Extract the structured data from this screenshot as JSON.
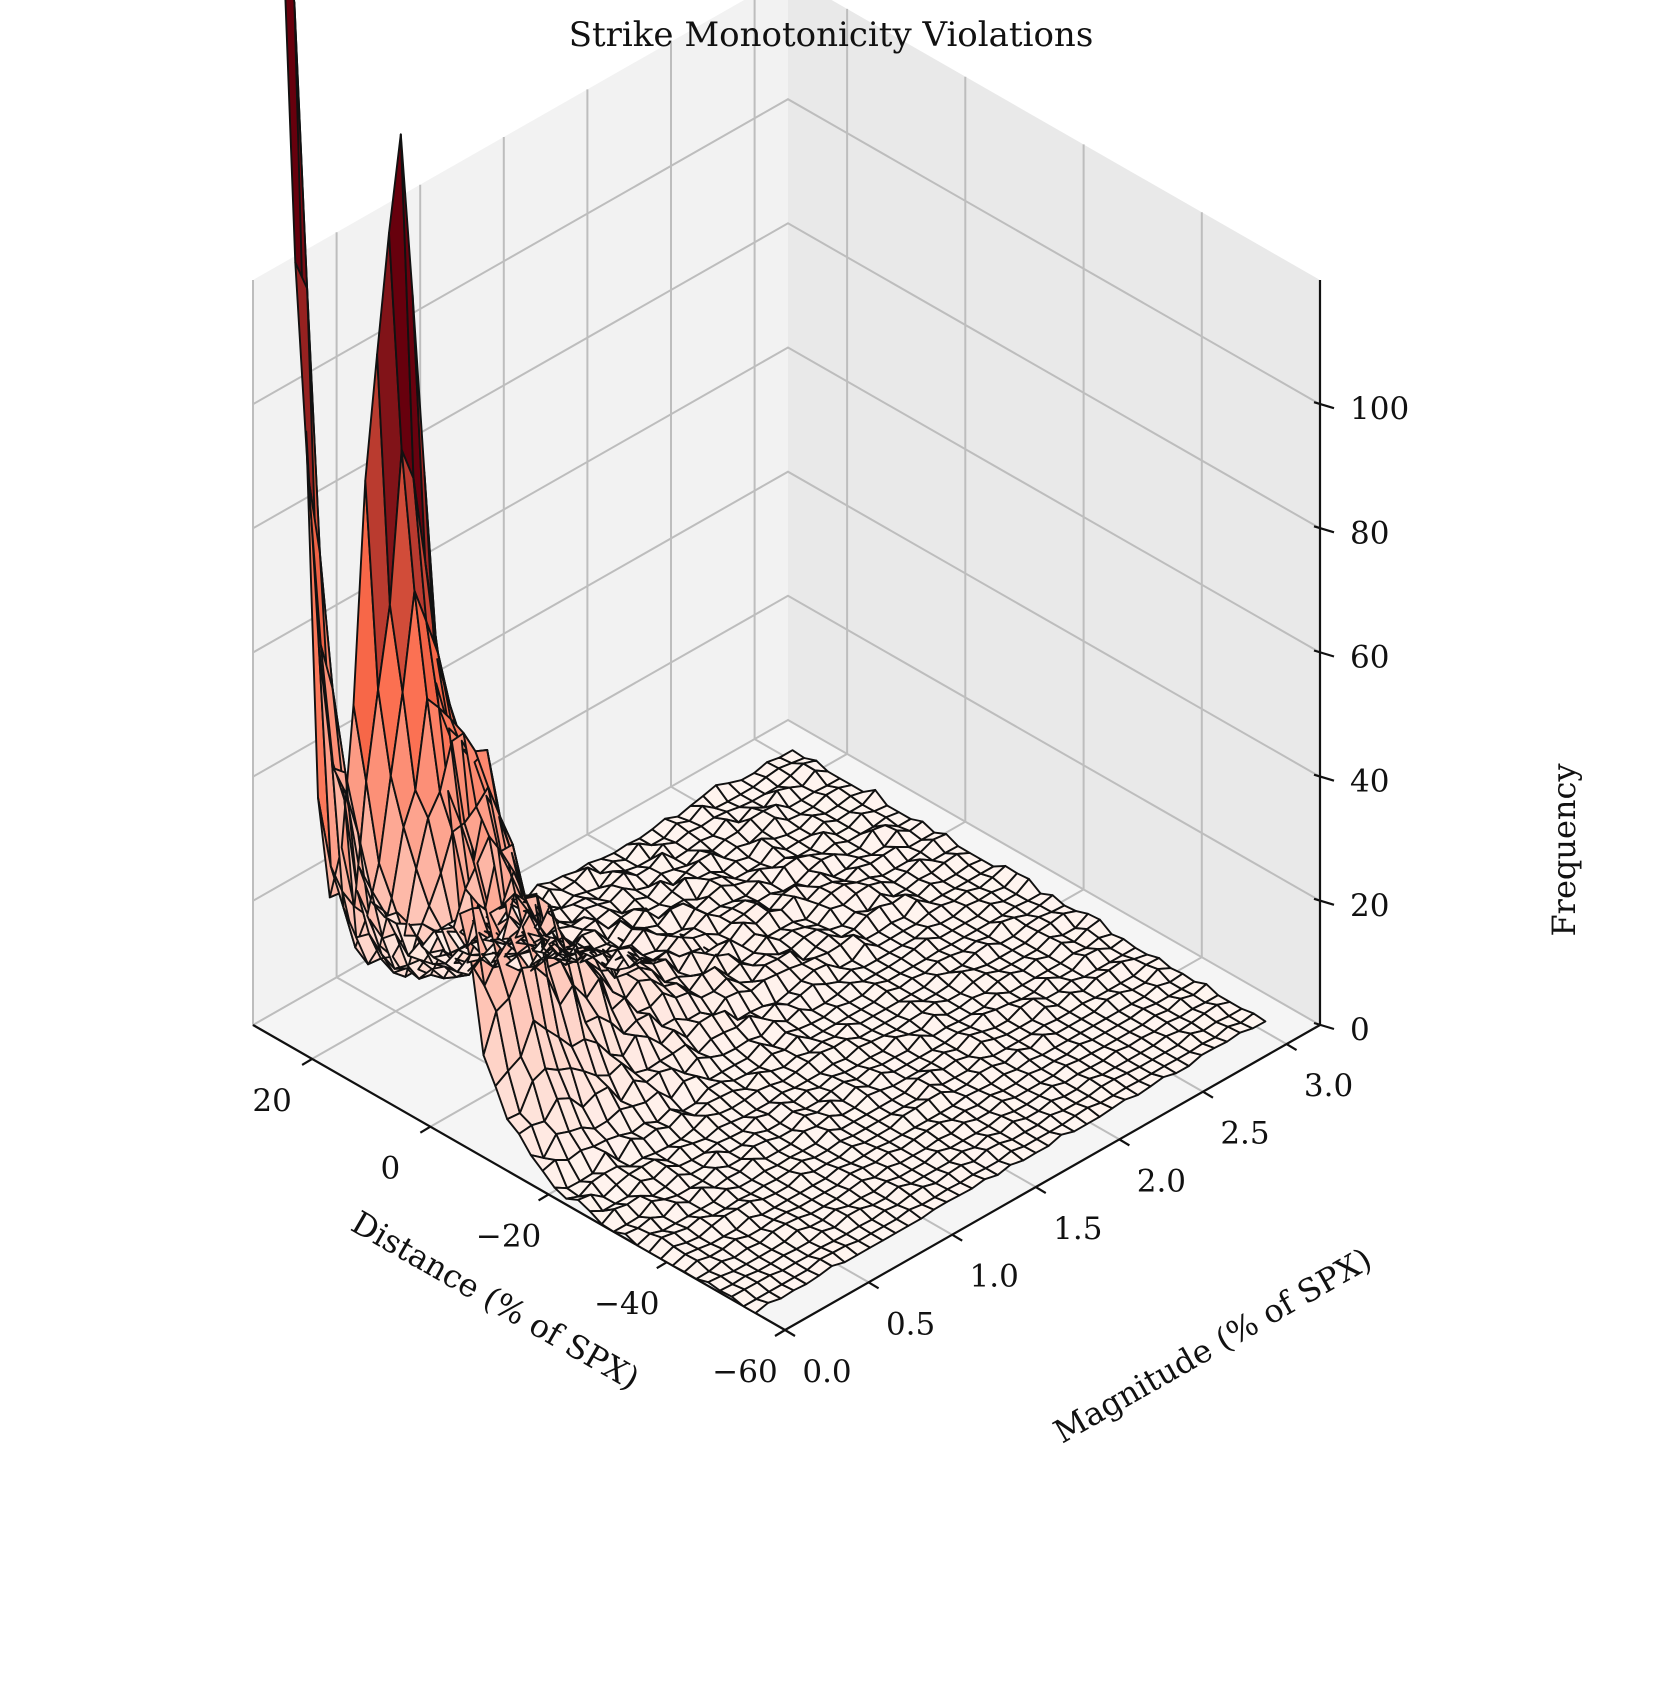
{
  "chart_data": {
    "type": "surface3d",
    "title": "Strike Monotonicity Violations",
    "xlabel": "Distance (% of SPX)",
    "ylabel": "Magnitude (% of SPX)",
    "zlabel": "Frequency",
    "xlim": [
      -60,
      30
    ],
    "ylim": [
      0,
      3.2
    ],
    "zlim": [
      0,
      120
    ],
    "x_ticks": [
      20,
      0,
      -20,
      -40,
      -60
    ],
    "x_tick_labels": [
      "20",
      "0",
      "−20",
      "−40",
      "−60"
    ],
    "y_ticks": [
      0.0,
      0.5,
      1.0,
      1.5,
      2.0,
      2.5,
      3.0
    ],
    "y_tick_labels": [
      "0.0",
      "0.5",
      "1.0",
      "1.5",
      "2.0",
      "2.5",
      "3.0"
    ],
    "z_ticks": [
      0,
      20,
      40,
      60,
      80,
      100
    ],
    "z_tick_labels": [
      "0",
      "20",
      "40",
      "60",
      "80",
      "100"
    ],
    "colormap": "Reds",
    "grid": true,
    "grid_x": {
      "start": -55,
      "stop": 25,
      "count": 41
    },
    "grid_y": {
      "start": 0.0,
      "stop": 3.05,
      "count": 41
    },
    "peak": {
      "x": 25,
      "y": 0.1,
      "z": 112
    },
    "features": [
      {
        "name": "main peak",
        "x": 25,
        "y": 0.1,
        "z": 112
      },
      {
        "name": "ridge",
        "x": 6,
        "y": 0.1,
        "z": 70
      },
      {
        "name": "shoulder",
        "x": -2,
        "y": 0.3,
        "z": 40
      }
    ],
    "colors": {
      "low": "#fff5f0",
      "mid": "#fb6a4a",
      "high": "#67000d",
      "edge": "#111111"
    }
  }
}
